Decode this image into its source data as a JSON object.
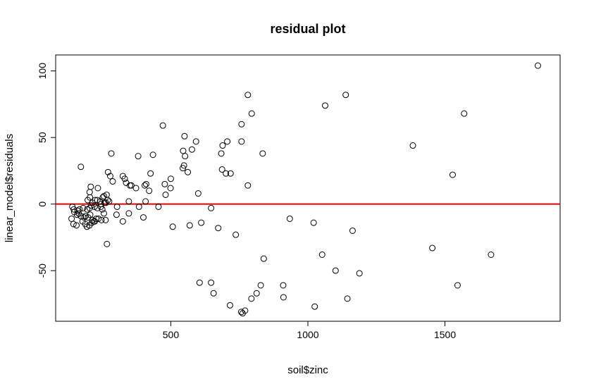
{
  "chart_data": {
    "type": "scatter",
    "title": "residual plot",
    "xlabel": "soil$zinc",
    "ylabel": "linear_model$residuals",
    "xlim": [
      80,
      1920
    ],
    "ylim": [
      -88,
      112
    ],
    "x_ticks": [
      500,
      1000,
      1500
    ],
    "y_ticks": [
      -50,
      0,
      50,
      100
    ],
    "x_tick_labels": [
      "500",
      "1000",
      "1500"
    ],
    "y_tick_labels": [
      "-50",
      "0",
      "50",
      "100"
    ],
    "reference_line": {
      "y": 0,
      "color": "#e00000"
    },
    "point_style": {
      "shape": "open-circle",
      "color": "#000000"
    },
    "grid": false,
    "legend": "none",
    "points": [
      [
        1839,
        104
      ],
      [
        1138,
        82
      ],
      [
        781,
        82
      ],
      [
        1063,
        74
      ],
      [
        1570,
        68
      ],
      [
        795,
        68
      ],
      [
        471,
        59
      ],
      [
        758,
        60
      ],
      [
        550,
        51
      ],
      [
        592,
        47
      ],
      [
        758,
        47
      ],
      [
        706,
        47
      ],
      [
        689,
        44
      ],
      [
        1383,
        44
      ],
      [
        545,
        40
      ],
      [
        577,
        41
      ],
      [
        835,
        38
      ],
      [
        684,
        38
      ],
      [
        283,
        38
      ],
      [
        435,
        37
      ],
      [
        381,
        36
      ],
      [
        552,
        36
      ],
      [
        548,
        29
      ],
      [
        544,
        27
      ],
      [
        562,
        24
      ],
      [
        687,
        26
      ],
      [
        718,
        23
      ],
      [
        701,
        23
      ],
      [
        426,
        23
      ],
      [
        1528,
        22
      ],
      [
        172,
        28
      ],
      [
        271,
        24
      ],
      [
        279,
        21
      ],
      [
        325,
        21
      ],
      [
        332,
        19
      ],
      [
        288,
        17
      ],
      [
        500,
        19
      ],
      [
        478,
        15
      ],
      [
        405,
        14
      ],
      [
        410,
        15
      ],
      [
        337,
        16
      ],
      [
        351,
        14
      ],
      [
        356,
        14
      ],
      [
        373,
        12
      ],
      [
        499,
        12
      ],
      [
        600,
        8
      ],
      [
        421,
        10
      ],
      [
        481,
        7
      ],
      [
        266,
        7
      ],
      [
        208,
        13
      ],
      [
        204,
        9
      ],
      [
        234,
        12
      ],
      [
        205,
        5
      ],
      [
        197,
        3
      ],
      [
        232,
        3
      ],
      [
        252,
        5
      ],
      [
        258,
        1
      ],
      [
        270,
        3
      ],
      [
        275,
        2
      ],
      [
        256,
        6
      ],
      [
        347,
        2
      ],
      [
        408,
        2
      ],
      [
        781,
        14
      ],
      [
        214,
        1
      ],
      [
        224,
        3
      ],
      [
        242,
        2
      ],
      [
        245,
        0
      ],
      [
        263,
        1
      ],
      [
        210,
        -1
      ],
      [
        222,
        -2
      ],
      [
        232,
        -3
      ],
      [
        245,
        -2
      ],
      [
        250,
        -4
      ],
      [
        204,
        -3
      ],
      [
        195,
        -4
      ],
      [
        180,
        -3
      ],
      [
        167,
        -4
      ],
      [
        160,
        -5
      ],
      [
        148,
        -6
      ],
      [
        141,
        -2
      ],
      [
        146,
        -4
      ],
      [
        158,
        -8
      ],
      [
        164,
        -7
      ],
      [
        172,
        -9
      ],
      [
        183,
        -10
      ],
      [
        189,
        -9
      ],
      [
        198,
        -10
      ],
      [
        206,
        -8
      ],
      [
        214,
        -12
      ],
      [
        223,
        -13
      ],
      [
        236,
        -11
      ],
      [
        247,
        -12
      ],
      [
        256,
        -7
      ],
      [
        262,
        -12
      ],
      [
        138,
        -11
      ],
      [
        145,
        -15
      ],
      [
        156,
        -16
      ],
      [
        178,
        -13
      ],
      [
        188,
        -15
      ],
      [
        194,
        -17
      ],
      [
        203,
        -16
      ],
      [
        212,
        -14
      ],
      [
        219,
        -13
      ],
      [
        228,
        -11
      ],
      [
        304,
        -2
      ],
      [
        302,
        -8
      ],
      [
        347,
        -7
      ],
      [
        384,
        -2
      ],
      [
        455,
        -2
      ],
      [
        647,
        -3
      ],
      [
        400,
        -10
      ],
      [
        325,
        -13
      ],
      [
        267,
        -30
      ],
      [
        507,
        -17
      ],
      [
        569,
        -16
      ],
      [
        611,
        -14
      ],
      [
        673,
        -18
      ],
      [
        737,
        -23
      ],
      [
        1021,
        -14
      ],
      [
        934,
        -11
      ],
      [
        1163,
        -20
      ],
      [
        839,
        -41
      ],
      [
        1052,
        -38
      ],
      [
        1454,
        -33
      ],
      [
        1668,
        -38
      ],
      [
        1101,
        -50
      ],
      [
        1188,
        -52
      ],
      [
        605,
        -59
      ],
      [
        647,
        -59
      ],
      [
        656,
        -67
      ],
      [
        716,
        -76
      ],
      [
        757,
        -81
      ],
      [
        762,
        -82
      ],
      [
        771,
        -80
      ],
      [
        794,
        -71
      ],
      [
        813,
        -67
      ],
      [
        828,
        -61
      ],
      [
        910,
        -61
      ],
      [
        911,
        -70
      ],
      [
        1025,
        -77
      ],
      [
        1144,
        -71
      ],
      [
        1546,
        -61
      ]
    ]
  }
}
